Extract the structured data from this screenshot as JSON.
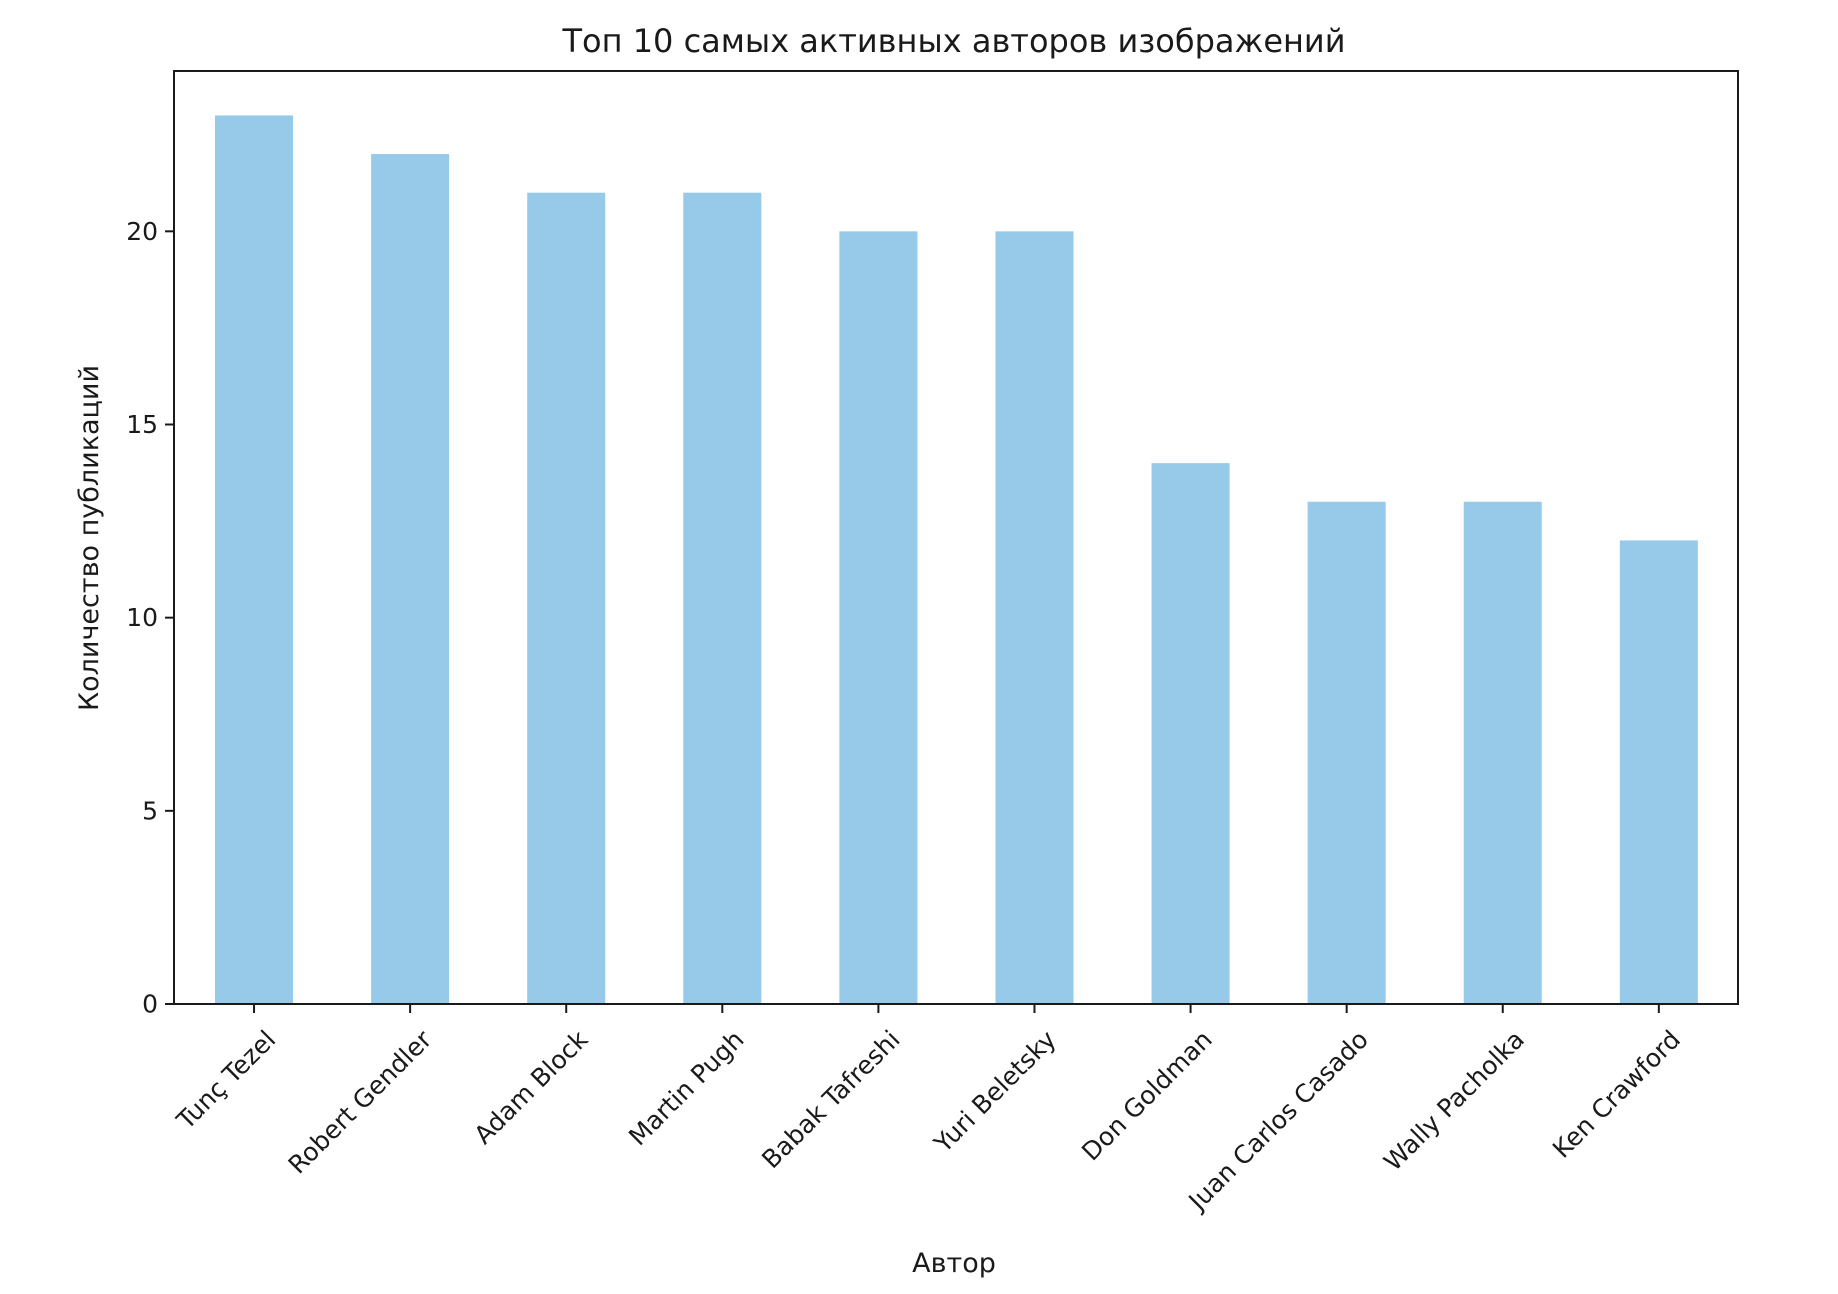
{
  "chart_data": {
    "type": "bar",
    "title": "Топ 10 самых активных авторов изображений",
    "xlabel": "Автор",
    "ylabel": "Количество публикаций",
    "categories": [
      "Tunç Tezel",
      "Robert Gendler",
      "Adam Block",
      "Martin Pugh",
      "Babak Tafreshi",
      "Yuri Beletsky",
      "Don Goldman",
      "Juan Carlos Casado",
      "Wally Pacholka",
      "Ken Crawford"
    ],
    "values": [
      23,
      22,
      21,
      21,
      20,
      20,
      14,
      13,
      13,
      12
    ],
    "ylim": [
      0,
      24.15
    ],
    "yticks": [
      0,
      5,
      10,
      15,
      20
    ],
    "grid": false,
    "bar_color": "#97cae8"
  }
}
